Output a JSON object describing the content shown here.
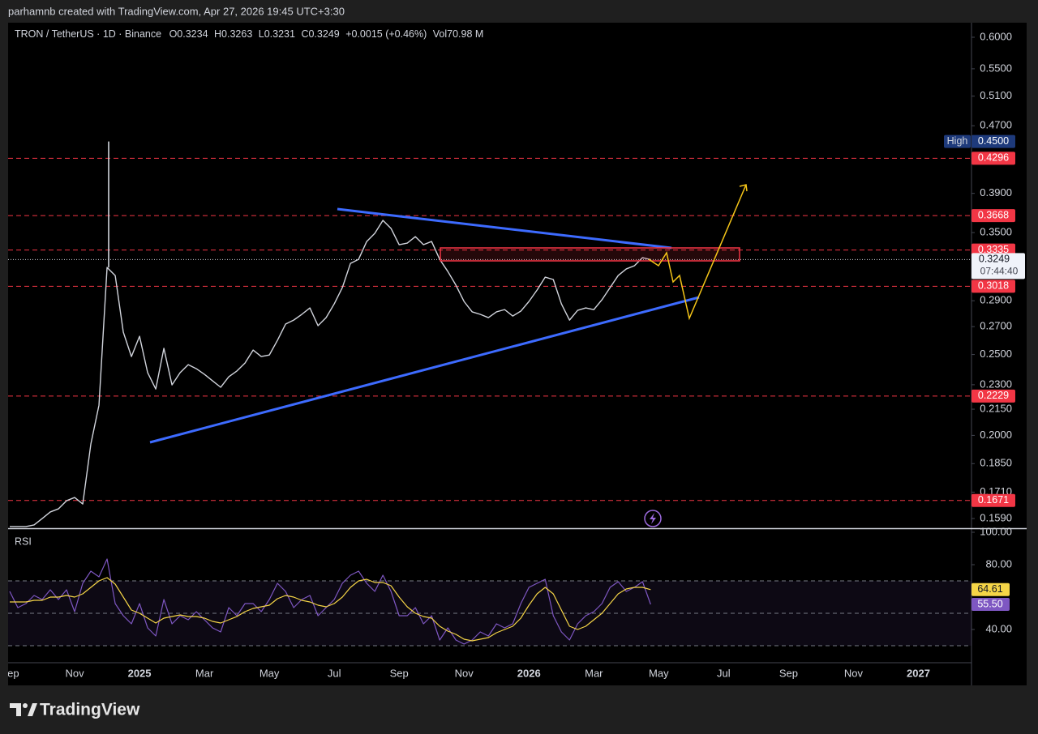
{
  "header": {
    "credit": "parhamnb created with TradingView.com, Apr 27, 2026 19:45 UTC+3:30"
  },
  "chart_data": [
    {
      "type": "line",
      "legend": {
        "symbol": "TRON / TetherUS · 1D · Binance",
        "open": "O0.3234",
        "high": "H0.3263",
        "low": "L0.3231",
        "close": "C0.3249",
        "change": "+0.0015 (+0.46%)",
        "volume": "Vol70.98 M"
      },
      "categories": [
        "Sep",
        null,
        null,
        null,
        null,
        null,
        null,
        null,
        "Nov",
        null,
        null,
        null,
        null,
        null,
        null,
        null,
        "2025",
        null,
        null,
        null,
        null,
        null,
        null,
        null,
        "Mar",
        null,
        null,
        null,
        null,
        null,
        null,
        null,
        "May",
        null,
        null,
        null,
        null,
        null,
        null,
        null,
        "Jul",
        null,
        null,
        null,
        null,
        null,
        null,
        null,
        "Sep",
        null,
        null,
        null,
        null,
        null,
        null,
        null,
        "Nov",
        null,
        null,
        null,
        null,
        null,
        null,
        null,
        "2026",
        null,
        null,
        null,
        null,
        null,
        null,
        null,
        "Mar",
        null,
        null,
        null,
        null,
        null,
        null,
        null,
        "May",
        null,
        null,
        null,
        null,
        null,
        null,
        null,
        "Jul",
        null,
        null,
        null,
        null,
        null,
        null,
        null,
        "Sep",
        null,
        null,
        null,
        null,
        null,
        null,
        null,
        "Nov",
        null,
        null,
        null,
        null,
        null,
        null,
        null,
        "2027",
        null,
        null,
        null,
        null,
        null
      ],
      "values": [
        0.1555,
        0.1555,
        0.1555,
        0.1562,
        0.159,
        0.1619,
        0.1633,
        0.167,
        0.1685,
        0.1655,
        0.1953,
        0.2174,
        0.3179,
        0.3109,
        0.2659,
        0.2486,
        0.2629,
        0.2378,
        0.2273,
        0.2543,
        0.2299,
        0.2378,
        0.2431,
        0.2404,
        0.2367,
        0.2325,
        0.2284,
        0.2351,
        0.2389,
        0.2442,
        0.2531,
        0.2486,
        0.2497,
        0.26,
        0.2719,
        0.2749,
        0.2793,
        0.2843,
        0.2707,
        0.2768,
        0.2875,
        0.3007,
        0.3215,
        0.3251,
        0.3415,
        0.3493,
        0.362,
        0.354,
        0.3385,
        0.34,
        0.3461,
        0.3385,
        0.3415,
        0.3251,
        0.3144,
        0.3027,
        0.2894,
        0.2812,
        0.2793,
        0.2768,
        0.2812,
        0.283,
        0.278,
        0.2818,
        0.2894,
        0.2987,
        0.3095,
        0.3075,
        0.2875,
        0.2749,
        0.2824,
        0.2843,
        0.283,
        0.2908,
        0.3007,
        0.3109,
        0.3166,
        0.3194,
        0.3266,
        0.3249,
        null,
        null,
        null,
        null,
        null,
        null,
        null,
        null,
        null,
        null,
        null,
        null,
        null,
        null,
        null,
        null,
        null,
        null,
        null,
        null,
        null,
        null,
        null,
        null,
        null,
        null,
        null,
        null,
        null,
        null,
        null,
        null,
        null,
        null,
        null,
        null,
        null,
        null
      ],
      "color": "#d1d4dc",
      "log_scale": true,
      "ylim": [
        0.1548,
        0.6246
      ],
      "yticks": [
        {
          "value": 0.6,
          "label": "0.6000"
        },
        {
          "value": 0.55,
          "label": "0.5500"
        },
        {
          "value": 0.51,
          "label": "0.5100"
        },
        {
          "value": 0.47,
          "label": "0.4700"
        },
        {
          "value": 0.39,
          "label": "0.3900"
        },
        {
          "value": 0.35,
          "label": "0.3500"
        },
        {
          "value": 0.29,
          "label": "0.2900"
        },
        {
          "value": 0.27,
          "label": "0.2700"
        },
        {
          "value": 0.25,
          "label": "0.2500"
        },
        {
          "value": 0.23,
          "label": "0.2300"
        },
        {
          "value": 0.215,
          "label": "0.2150"
        },
        {
          "value": 0.2,
          "label": "0.2000"
        },
        {
          "value": 0.185,
          "label": "0.1850"
        },
        {
          "value": 0.171,
          "label": "0.1710"
        },
        {
          "value": 0.159,
          "label": "0.1590"
        }
      ],
      "high": {
        "text": "High",
        "value": 0.45,
        "label": "0.4500",
        "color": "#1e3a7b"
      },
      "levels": [
        0.4296,
        0.3668,
        0.3335,
        0.3018,
        0.2229,
        0.1671
      ],
      "level_color": "#f23645",
      "last": {
        "value": 0.3249,
        "countdown": "07:44:40"
      }
    },
    {
      "type": "line",
      "title": "RSI",
      "ylim": [
        19.5,
        102.5
      ],
      "yticks": [
        {
          "value": 100,
          "label": "100.00"
        },
        {
          "value": 80,
          "label": "80.00"
        },
        {
          "value": 40,
          "label": "40.00"
        }
      ],
      "bands": [
        70,
        50,
        30
      ],
      "band_color": "#7e57c2",
      "series": [
        {
          "color": "#7e57c2",
          "last_label": "55.50",
          "values": [
            63.5,
            53.5,
            56,
            61,
            58.5,
            64.5,
            58.5,
            64.5,
            51,
            68.5,
            76,
            72.5,
            83.5,
            56,
            48.5,
            43.5,
            56,
            41,
            36,
            58.5,
            43.5,
            48.5,
            46,
            51,
            46,
            41,
            38.5,
            53.5,
            48.5,
            56,
            56,
            51,
            58.5,
            68.5,
            63.5,
            53.5,
            58.5,
            61,
            48.5,
            53.5,
            58.5,
            68.5,
            73.5,
            76,
            68.5,
            63.5,
            73.5,
            63.5,
            48.5,
            48.5,
            53.5,
            43.5,
            48.5,
            33.5,
            41,
            33.5,
            31,
            33.5,
            38.5,
            36,
            43.5,
            41,
            43.5,
            56,
            66,
            68.5,
            71,
            48.5,
            38.5,
            33.5,
            43.5,
            48.5,
            51,
            56,
            66,
            69.5,
            63.5,
            66,
            69.5,
            55.5,
            null,
            null,
            null,
            null,
            null,
            null,
            null,
            null,
            null,
            null,
            null,
            null,
            null,
            null,
            null,
            null,
            null,
            null,
            null,
            null,
            null,
            null,
            null,
            null,
            null,
            null,
            null,
            null,
            null,
            null,
            null,
            null,
            null,
            null,
            null,
            null,
            null,
            null
          ]
        },
        {
          "color": "#f5d547",
          "last_label": "64.61",
          "values": [
            57,
            57,
            57,
            58,
            58,
            60,
            60,
            61,
            60,
            62,
            66,
            70,
            72,
            68,
            60,
            52,
            50,
            47,
            44,
            47,
            48,
            49,
            48,
            48,
            47,
            45,
            44,
            46,
            48,
            51,
            53,
            54,
            55,
            59,
            61,
            60,
            58,
            57,
            55,
            54,
            56,
            60,
            66,
            70,
            71,
            69,
            69,
            67,
            60,
            54,
            50,
            48,
            47,
            42,
            39,
            37,
            34,
            33,
            34,
            35,
            38,
            40,
            42,
            47,
            55,
            62,
            66,
            62,
            52,
            42,
            40,
            42,
            46,
            50,
            56,
            62,
            65,
            66,
            66,
            64.61,
            null,
            null,
            null,
            null,
            null,
            null,
            null,
            null,
            null,
            null,
            null,
            null,
            null,
            null,
            null,
            null,
            null,
            null,
            null,
            null,
            null,
            null,
            null,
            null,
            null,
            null,
            null,
            null,
            null,
            null,
            null,
            null,
            null,
            null,
            null,
            null,
            null,
            null
          ]
        }
      ]
    }
  ],
  "footer": {
    "brand": "TradingView"
  }
}
